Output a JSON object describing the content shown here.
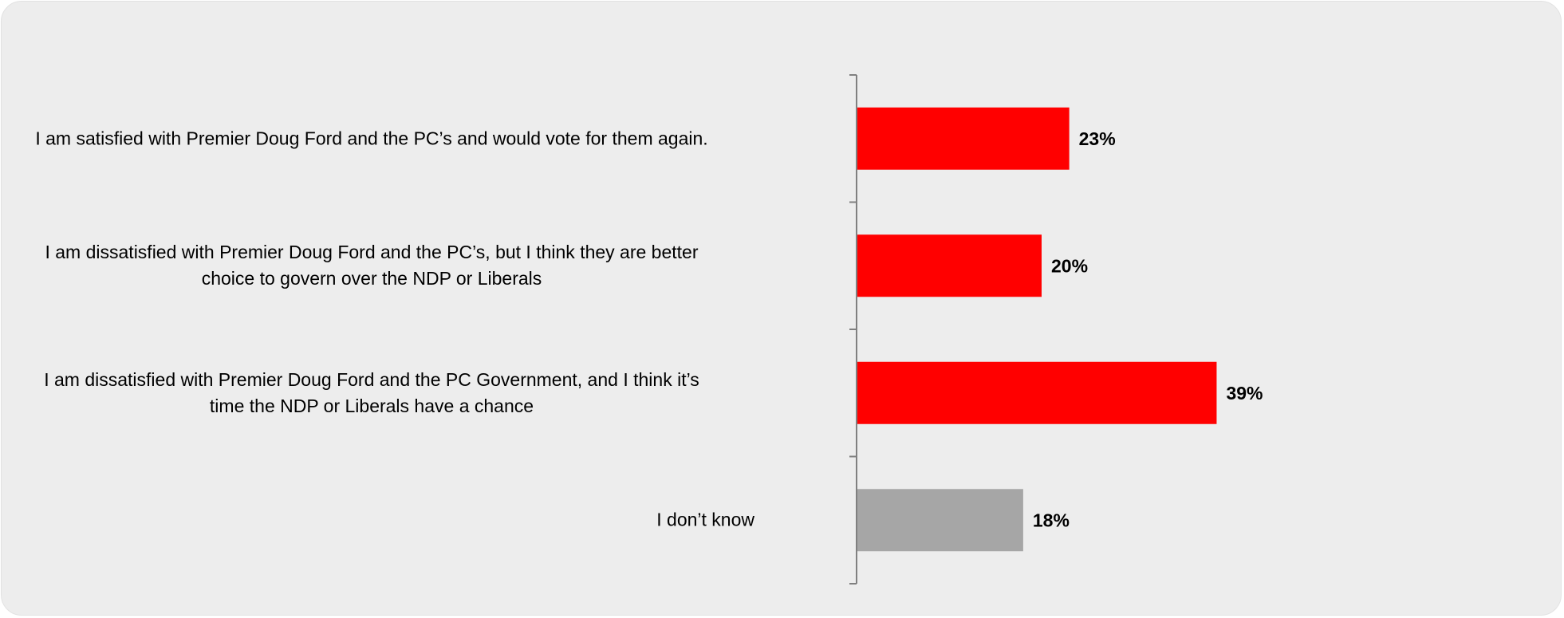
{
  "chart_data": {
    "type": "bar",
    "orientation": "horizontal",
    "title": "",
    "xlabel": "",
    "ylabel": "",
    "categories": [
      "I am satisfied with Premier Doug Ford and the PC’s and would vote for them again.",
      "I am dissatisfied with Premier Doug Ford and the PC’s, but I think they are better\nchoice to govern over the NDP or Liberals",
      "I am dissatisfied with Premier Doug Ford and the PC Government, and I think it’s\ntime the NDP or Liberals have a chance",
      "I don’t know"
    ],
    "values": [
      23,
      20,
      39,
      18
    ],
    "value_labels": [
      "23%",
      "20%",
      "39%",
      "18%"
    ],
    "bar_colors": [
      "#ff0000",
      "#ff0000",
      "#ff0000",
      "#a6a6a6"
    ],
    "xlim": [
      0,
      100
    ],
    "grid": false,
    "legend": "none"
  },
  "colors": {
    "background": "#ededed",
    "axis": "#808080",
    "text": "#000000"
  }
}
